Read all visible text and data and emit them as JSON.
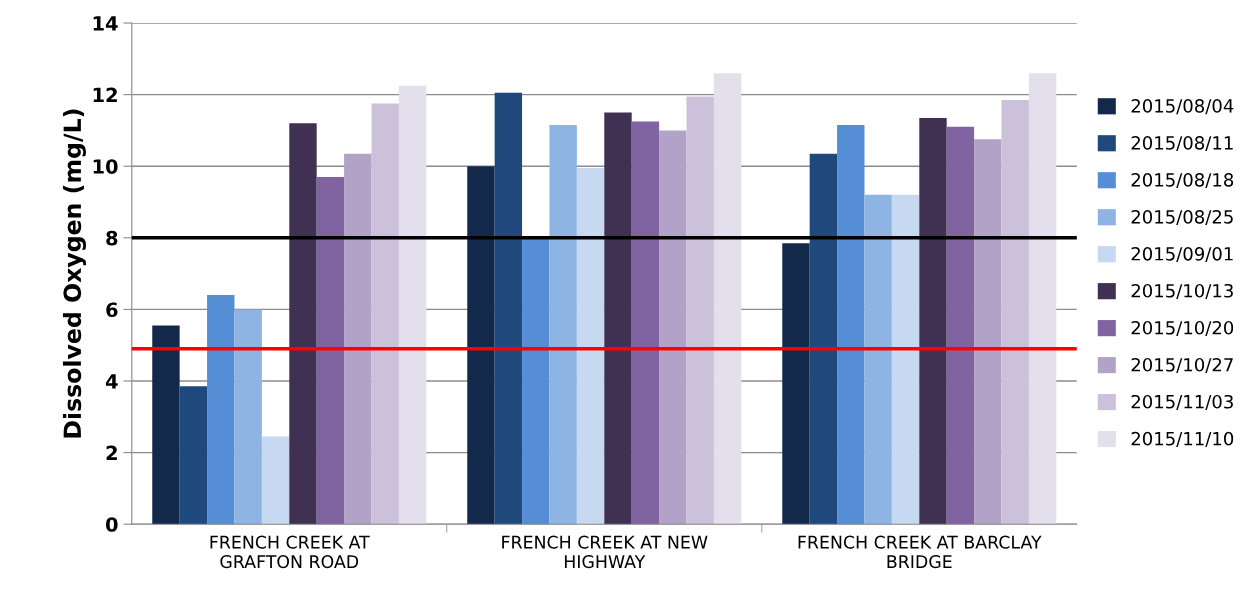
{
  "chart_data": {
    "type": "bar",
    "ylabel": "Dissolved Oxygen (mg/L)",
    "categories": [
      "FRENCH CREEK AT\nGRAFTON ROAD",
      "FRENCH CREEK AT NEW\nHIGHWAY",
      "FRENCH CREEK AT BARCLAY\nBRIDGE"
    ],
    "series": [
      {
        "name": "2015/08/04",
        "color": "#13294b",
        "values": [
          5.55,
          10.0,
          7.85
        ]
      },
      {
        "name": "2015/08/11",
        "color": "#1f497d",
        "values": [
          3.85,
          12.05,
          10.35
        ]
      },
      {
        "name": "2015/08/18",
        "color": "#558ed5",
        "values": [
          6.4,
          8.0,
          11.15
        ]
      },
      {
        "name": "2015/08/25",
        "color": "#8eb4e3",
        "values": [
          6.0,
          11.15,
          9.2
        ]
      },
      {
        "name": "2015/09/01",
        "color": "#c6d9f1",
        "values": [
          2.45,
          9.95,
          9.2
        ]
      },
      {
        "name": "2015/10/13",
        "color": "#403152",
        "values": [
          11.2,
          11.5,
          11.35
        ]
      },
      {
        "name": "2015/10/20",
        "color": "#8064a2",
        "values": [
          9.7,
          11.25,
          11.1
        ]
      },
      {
        "name": "2015/10/27",
        "color": "#b3a2c7",
        "values": [
          10.35,
          11.0,
          10.75
        ]
      },
      {
        "name": "2015/11/03",
        "color": "#ccc1da",
        "values": [
          11.75,
          11.95,
          11.85
        ]
      },
      {
        "name": "2015/11/10",
        "color": "#e4dfec",
        "values": [
          12.25,
          12.6,
          12.6
        ]
      }
    ],
    "ylim": [
      0,
      14
    ],
    "yticks": [
      0,
      2,
      4,
      6,
      8,
      10,
      12,
      14
    ],
    "grid": "y",
    "legend": "right",
    "ref_lines": [
      {
        "axis": "y",
        "value": 8,
        "color": "#000000"
      },
      {
        "axis": "y",
        "value": 4.9,
        "color": "#ff0000"
      }
    ]
  }
}
